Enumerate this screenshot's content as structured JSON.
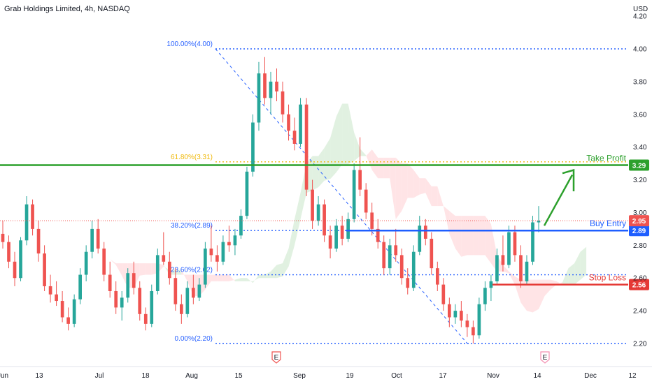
{
  "header": {
    "title": "Grab Holdings Limited, 4h, NASDAQ",
    "currency": "USD"
  },
  "colors": {
    "bull": "#26a69a",
    "bear": "#ef5350",
    "fib": "#2962ff",
    "fib_gold": "#f0b90b",
    "take_profit": "#2ca02c",
    "buy_entry": "#1e5eff",
    "stop_loss": "#e53935",
    "cloud_bull": "#c8e6c9",
    "cloud_bear": "#ffcdd2",
    "arrow": "#2ca02c",
    "grid_text": "#131722"
  },
  "chart_data": {
    "type": "candlestick",
    "title": "Grab Holdings Limited, 4h, NASDAQ",
    "ylabel": "USD",
    "ylim": [
      2.08,
      4.28
    ],
    "y_ticks": [
      "2.20",
      "2.40",
      "2.60",
      "2.80",
      "3.00",
      "3.20",
      "3.40",
      "3.60",
      "3.80",
      "4.00",
      "4.20"
    ],
    "x_ticks": [
      "Jun",
      "13",
      "Jul",
      "18",
      "Aug",
      "15",
      "Sep",
      "19",
      "Oct",
      "17",
      "Nov",
      "14",
      "Dec",
      "12"
    ],
    "fib_levels": [
      {
        "label": "100.00%(4.00)",
        "value": 4.0
      },
      {
        "label": "61.80%(3.31)",
        "value": 3.31
      },
      {
        "label": "38.20%(2.89)",
        "value": 2.89
      },
      {
        "label": "23.60%(2.62)",
        "value": 2.62
      },
      {
        "label": "0.00%(2.20)",
        "value": 2.2
      }
    ],
    "annotations": [
      {
        "label": "Take Profit",
        "value": 3.29,
        "tag": "3.29"
      },
      {
        "label": "Buy Entry",
        "value": 2.89,
        "tag": "2.89"
      },
      {
        "label": "Stop Loss",
        "value": 2.56,
        "tag": "2.56"
      }
    ],
    "last_price": {
      "value": 2.95,
      "tag": "2.95"
    },
    "earnings_markers": [
      "E",
      "E"
    ],
    "candles": [
      [
        2.87,
        2.95,
        2.78,
        2.82
      ],
      [
        2.82,
        2.86,
        2.66,
        2.7
      ],
      [
        2.7,
        2.76,
        2.55,
        2.6
      ],
      [
        2.6,
        2.85,
        2.58,
        2.83
      ],
      [
        2.83,
        3.1,
        2.8,
        3.05
      ],
      [
        3.05,
        3.08,
        2.86,
        2.9
      ],
      [
        2.9,
        2.95,
        2.7,
        2.75
      ],
      [
        2.75,
        2.8,
        2.52,
        2.55
      ],
      [
        2.55,
        2.62,
        2.45,
        2.5
      ],
      [
        2.5,
        2.58,
        2.43,
        2.46
      ],
      [
        2.46,
        2.52,
        2.33,
        2.36
      ],
      [
        2.36,
        2.42,
        2.28,
        2.32
      ],
      [
        2.32,
        2.5,
        2.3,
        2.47
      ],
      [
        2.47,
        2.66,
        2.44,
        2.62
      ],
      [
        2.62,
        2.8,
        2.58,
        2.76
      ],
      [
        2.76,
        2.95,
        2.72,
        2.9
      ],
      [
        2.9,
        2.96,
        2.75,
        2.78
      ],
      [
        2.78,
        2.82,
        2.58,
        2.62
      ],
      [
        2.62,
        2.7,
        2.48,
        2.52
      ],
      [
        2.52,
        2.58,
        2.38,
        2.42
      ],
      [
        2.42,
        2.52,
        2.34,
        2.48
      ],
      [
        2.48,
        2.66,
        2.45,
        2.63
      ],
      [
        2.63,
        2.7,
        2.5,
        2.54
      ],
      [
        2.54,
        2.58,
        2.34,
        2.38
      ],
      [
        2.38,
        2.42,
        2.28,
        2.32
      ],
      [
        2.32,
        2.56,
        2.3,
        2.52
      ],
      [
        2.52,
        2.78,
        2.5,
        2.74
      ],
      [
        2.74,
        2.88,
        2.68,
        2.7
      ],
      [
        2.7,
        2.76,
        2.56,
        2.6
      ],
      [
        2.6,
        2.66,
        2.4,
        2.44
      ],
      [
        2.44,
        2.5,
        2.32,
        2.38
      ],
      [
        2.38,
        2.58,
        2.36,
        2.54
      ],
      [
        2.54,
        2.62,
        2.44,
        2.48
      ],
      [
        2.48,
        2.6,
        2.46,
        2.56
      ],
      [
        2.56,
        2.82,
        2.54,
        2.78
      ],
      [
        2.78,
        2.92,
        2.7,
        2.74
      ],
      [
        2.74,
        2.8,
        2.64,
        2.7
      ],
      [
        2.7,
        2.86,
        2.68,
        2.82
      ],
      [
        2.82,
        2.92,
        2.76,
        2.8
      ],
      [
        2.8,
        2.9,
        2.74,
        2.86
      ],
      [
        2.86,
        3.02,
        2.84,
        2.98
      ],
      [
        2.98,
        3.28,
        2.96,
        3.25
      ],
      [
        3.25,
        3.6,
        3.22,
        3.55
      ],
      [
        3.55,
        3.92,
        3.5,
        3.85
      ],
      [
        3.85,
        3.95,
        3.66,
        3.7
      ],
      [
        3.7,
        3.86,
        3.6,
        3.8
      ],
      [
        3.8,
        3.88,
        3.68,
        3.74
      ],
      [
        3.74,
        3.8,
        3.55,
        3.6
      ],
      [
        3.6,
        3.66,
        3.44,
        3.5
      ],
      [
        3.5,
        3.58,
        3.38,
        3.42
      ],
      [
        3.42,
        3.7,
        3.4,
        3.66
      ],
      [
        3.66,
        3.7,
        3.1,
        3.14
      ],
      [
        3.14,
        3.2,
        2.9,
        2.95
      ],
      [
        2.95,
        3.1,
        2.92,
        3.05
      ],
      [
        3.05,
        3.08,
        2.82,
        2.86
      ],
      [
        2.86,
        2.92,
        2.72,
        2.78
      ],
      [
        2.78,
        2.96,
        2.76,
        2.92
      ],
      [
        2.92,
        2.98,
        2.8,
        2.84
      ],
      [
        2.84,
        3.0,
        2.82,
        2.96
      ],
      [
        2.96,
        3.3,
        2.94,
        3.26
      ],
      [
        3.26,
        3.46,
        3.1,
        3.14
      ],
      [
        3.14,
        3.18,
        2.96,
        3.0
      ],
      [
        3.0,
        3.06,
        2.86,
        2.9
      ],
      [
        2.9,
        2.96,
        2.78,
        2.82
      ],
      [
        2.82,
        2.86,
        2.62,
        2.66
      ],
      [
        2.66,
        2.84,
        2.62,
        2.8
      ],
      [
        2.8,
        2.9,
        2.7,
        2.74
      ],
      [
        2.74,
        2.78,
        2.56,
        2.6
      ],
      [
        2.6,
        2.66,
        2.5,
        2.54
      ],
      [
        2.54,
        2.8,
        2.52,
        2.76
      ],
      [
        2.76,
        2.98,
        2.74,
        2.92
      ],
      [
        2.92,
        2.96,
        2.8,
        2.84
      ],
      [
        2.84,
        2.88,
        2.62,
        2.66
      ],
      [
        2.66,
        2.7,
        2.52,
        2.56
      ],
      [
        2.56,
        2.6,
        2.4,
        2.44
      ],
      [
        2.44,
        2.48,
        2.3,
        2.36
      ],
      [
        2.36,
        2.44,
        2.32,
        2.4
      ],
      [
        2.4,
        2.46,
        2.3,
        2.34
      ],
      [
        2.34,
        2.38,
        2.24,
        2.3
      ],
      [
        2.3,
        2.34,
        2.2,
        2.25
      ],
      [
        2.25,
        2.48,
        2.23,
        2.44
      ],
      [
        2.44,
        2.58,
        2.4,
        2.54
      ],
      [
        2.54,
        2.62,
        2.46,
        2.58
      ],
      [
        2.58,
        2.78,
        2.56,
        2.74
      ],
      [
        2.74,
        2.86,
        2.64,
        2.68
      ],
      [
        2.68,
        2.92,
        2.66,
        2.88
      ],
      [
        2.88,
        2.92,
        2.7,
        2.74
      ],
      [
        2.74,
        2.8,
        2.54,
        2.58
      ],
      [
        2.58,
        2.74,
        2.56,
        2.7
      ],
      [
        2.7,
        2.98,
        2.68,
        2.94
      ],
      [
        2.94,
        3.04,
        2.88,
        2.95
      ]
    ]
  }
}
